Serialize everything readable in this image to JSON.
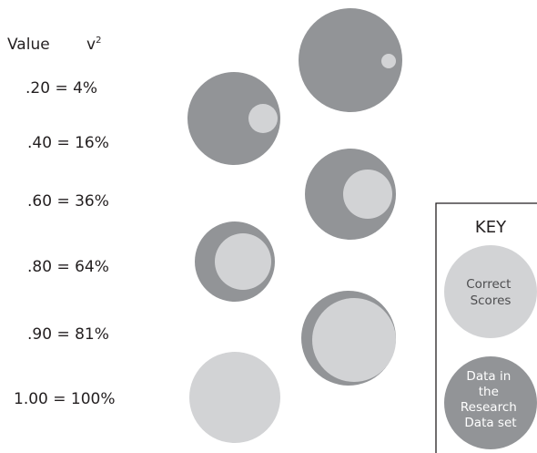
{
  "header": {
    "value_label": "Value",
    "v_symbol": "v",
    "v_exponent": "2"
  },
  "rows": [
    {
      "label": ".20 = 4%",
      "value": 0.2,
      "percent": 4
    },
    {
      "label": ".40 = 16%",
      "value": 0.4,
      "percent": 16
    },
    {
      "label": ".60 = 36%",
      "value": 0.6,
      "percent": 36
    },
    {
      "label": ".80 = 64%",
      "value": 0.8,
      "percent": 64
    },
    {
      "label": ".90 = 81%",
      "value": 0.9,
      "percent": 81
    },
    {
      "label": "1.00 = 100%",
      "value": 1.0,
      "percent": 100
    }
  ],
  "key": {
    "title": "KEY",
    "correct_lines": [
      "Correct",
      "Scores"
    ],
    "data_lines": [
      "Data in",
      "the",
      "Research",
      "Data set"
    ]
  },
  "colors": {
    "dark_circle": "#929497",
    "light_circle": "#d2d3d5",
    "text": "#231f20",
    "key_border": "#231f20"
  }
}
